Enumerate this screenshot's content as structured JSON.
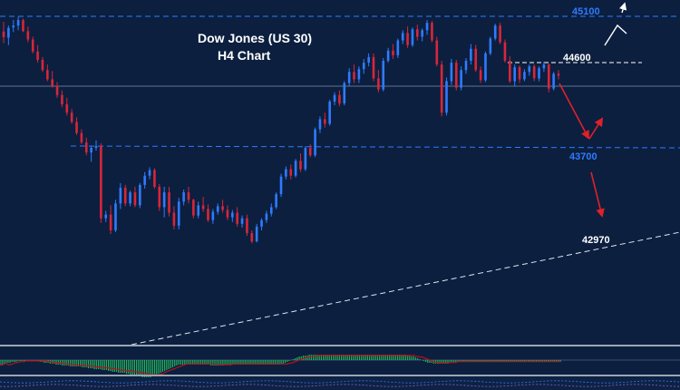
{
  "colors": {
    "background": "#0c1f3f",
    "bull_candle": "#2f7bff",
    "bear_candle": "#d8263a",
    "resistance_dash": "#2f7bff",
    "level_white": "#ffffff",
    "projection_red": "#e0202a",
    "projection_white": "#ffffff",
    "macd_hist": "#22b45a",
    "signal_line": "#b8121e",
    "panel_border": "#9aa6b6"
  },
  "chart_data": {
    "type": "candlestick",
    "title": "Dow Jones (US 30)",
    "subtitle": "H4 Chart",
    "timeframe": "H4",
    "ylim": [
      42640,
      45140
    ],
    "price_levels": [
      {
        "name": "resistance",
        "value": 45100,
        "label": "45100",
        "color": "#2f7bff",
        "style": "dashed"
      },
      {
        "name": "resistance-2",
        "value": 44600,
        "label": "44600",
        "color": "#ffffff",
        "style": "dashed"
      },
      {
        "name": "support",
        "value": 43700,
        "label": "43700",
        "color": "#2f7bff",
        "style": "dashed"
      },
      {
        "name": "target",
        "value": 42970,
        "label": "42970",
        "color": "#ffffff",
        "style": "none"
      }
    ],
    "trendline": "ascending support (dashed white)",
    "projection": "down to 43700, bounce, then down toward 42970; alternative breakout above 45100",
    "candles": [
      {
        "o": 44935,
        "h": 45040,
        "l": 44810,
        "c": 44875
      },
      {
        "o": 44870,
        "h": 45000,
        "l": 44790,
        "c": 44975
      },
      {
        "o": 44980,
        "h": 45060,
        "l": 44930,
        "c": 45000
      },
      {
        "o": 45000,
        "h": 45095,
        "l": 44950,
        "c": 45060
      },
      {
        "o": 45060,
        "h": 45075,
        "l": 44930,
        "c": 44940
      },
      {
        "o": 44940,
        "h": 44990,
        "l": 44820,
        "c": 44850
      },
      {
        "o": 44850,
        "h": 44880,
        "l": 44700,
        "c": 44720
      },
      {
        "o": 44720,
        "h": 44790,
        "l": 44600,
        "c": 44630
      },
      {
        "o": 44630,
        "h": 44660,
        "l": 44500,
        "c": 44520
      },
      {
        "o": 44520,
        "h": 44580,
        "l": 44400,
        "c": 44420
      },
      {
        "o": 44420,
        "h": 44510,
        "l": 44330,
        "c": 44350
      },
      {
        "o": 44350,
        "h": 44390,
        "l": 44220,
        "c": 44250
      },
      {
        "o": 44250,
        "h": 44300,
        "l": 44120,
        "c": 44150
      },
      {
        "o": 44150,
        "h": 44220,
        "l": 44030,
        "c": 44060
      },
      {
        "o": 44060,
        "h": 44100,
        "l": 43940,
        "c": 43960
      },
      {
        "o": 43960,
        "h": 44010,
        "l": 43820,
        "c": 43840
      },
      {
        "o": 43840,
        "h": 43880,
        "l": 43720,
        "c": 43740
      },
      {
        "o": 43740,
        "h": 43790,
        "l": 43600,
        "c": 43630
      },
      {
        "o": 43630,
        "h": 43700,
        "l": 43530,
        "c": 43680
      },
      {
        "o": 43680,
        "h": 43760,
        "l": 43650,
        "c": 43700
      },
      {
        "o": 43700,
        "h": 43730,
        "l": 42870,
        "c": 42920
      },
      {
        "o": 42920,
        "h": 43000,
        "l": 42880,
        "c": 42960
      },
      {
        "o": 42960,
        "h": 43060,
        "l": 42750,
        "c": 42790
      },
      {
        "o": 42790,
        "h": 43120,
        "l": 42770,
        "c": 43080
      },
      {
        "o": 43080,
        "h": 43300,
        "l": 43020,
        "c": 43250
      },
      {
        "o": 43250,
        "h": 43280,
        "l": 43050,
        "c": 43080
      },
      {
        "o": 43080,
        "h": 43220,
        "l": 43050,
        "c": 43200
      },
      {
        "o": 43200,
        "h": 43260,
        "l": 43040,
        "c": 43060
      },
      {
        "o": 43060,
        "h": 43300,
        "l": 43030,
        "c": 43280
      },
      {
        "o": 43280,
        "h": 43420,
        "l": 43240,
        "c": 43380
      },
      {
        "o": 43380,
        "h": 43470,
        "l": 43340,
        "c": 43440
      },
      {
        "o": 43440,
        "h": 43460,
        "l": 43240,
        "c": 43260
      },
      {
        "o": 43260,
        "h": 43290,
        "l": 43000,
        "c": 43040
      },
      {
        "o": 43040,
        "h": 43260,
        "l": 42930,
        "c": 43200
      },
      {
        "o": 43200,
        "h": 43260,
        "l": 42940,
        "c": 42980
      },
      {
        "o": 42980,
        "h": 43050,
        "l": 42800,
        "c": 42840
      },
      {
        "o": 42840,
        "h": 43140,
        "l": 42800,
        "c": 43100
      },
      {
        "o": 43100,
        "h": 43230,
        "l": 43060,
        "c": 43200
      },
      {
        "o": 43200,
        "h": 43260,
        "l": 43080,
        "c": 43120
      },
      {
        "o": 43120,
        "h": 43130,
        "l": 42920,
        "c": 42950
      },
      {
        "o": 42950,
        "h": 43100,
        "l": 42920,
        "c": 43060
      },
      {
        "o": 43060,
        "h": 43150,
        "l": 42990,
        "c": 43020
      },
      {
        "o": 43020,
        "h": 43070,
        "l": 42880,
        "c": 42900
      },
      {
        "o": 42900,
        "h": 43020,
        "l": 42860,
        "c": 42990
      },
      {
        "o": 42990,
        "h": 43080,
        "l": 42960,
        "c": 43050
      },
      {
        "o": 43050,
        "h": 43120,
        "l": 42980,
        "c": 43010
      },
      {
        "o": 43010,
        "h": 43060,
        "l": 42900,
        "c": 42930
      },
      {
        "o": 42930,
        "h": 43010,
        "l": 42880,
        "c": 42980
      },
      {
        "o": 42980,
        "h": 43040,
        "l": 42830,
        "c": 42860
      },
      {
        "o": 42860,
        "h": 42950,
        "l": 42820,
        "c": 42920
      },
      {
        "o": 42920,
        "h": 42960,
        "l": 42730,
        "c": 42760
      },
      {
        "o": 42760,
        "h": 42790,
        "l": 42650,
        "c": 42670
      },
      {
        "o": 42670,
        "h": 42860,
        "l": 42660,
        "c": 42830
      },
      {
        "o": 42830,
        "h": 42920,
        "l": 42790,
        "c": 42900
      },
      {
        "o": 42900,
        "h": 43000,
        "l": 42870,
        "c": 42970
      },
      {
        "o": 42970,
        "h": 43080,
        "l": 42940,
        "c": 43040
      },
      {
        "o": 43040,
        "h": 43200,
        "l": 43020,
        "c": 43180
      },
      {
        "o": 43180,
        "h": 43400,
        "l": 43150,
        "c": 43370
      },
      {
        "o": 43370,
        "h": 43480,
        "l": 43340,
        "c": 43450
      },
      {
        "o": 43450,
        "h": 43500,
        "l": 43340,
        "c": 43380
      },
      {
        "o": 43380,
        "h": 43560,
        "l": 43360,
        "c": 43540
      },
      {
        "o": 43540,
        "h": 43620,
        "l": 43420,
        "c": 43450
      },
      {
        "o": 43450,
        "h": 43700,
        "l": 43430,
        "c": 43680
      },
      {
        "o": 43680,
        "h": 43720,
        "l": 43580,
        "c": 43600
      },
      {
        "o": 43600,
        "h": 43900,
        "l": 43580,
        "c": 43880
      },
      {
        "o": 43880,
        "h": 44020,
        "l": 43840,
        "c": 43990
      },
      {
        "o": 43990,
        "h": 44060,
        "l": 43900,
        "c": 43940
      },
      {
        "o": 43940,
        "h": 44200,
        "l": 43920,
        "c": 44180
      },
      {
        "o": 44180,
        "h": 44280,
        "l": 44140,
        "c": 44250
      },
      {
        "o": 44250,
        "h": 44300,
        "l": 44130,
        "c": 44160
      },
      {
        "o": 44160,
        "h": 44400,
        "l": 44140,
        "c": 44380
      },
      {
        "o": 44380,
        "h": 44540,
        "l": 44350,
        "c": 44500
      },
      {
        "o": 44500,
        "h": 44580,
        "l": 44380,
        "c": 44420
      },
      {
        "o": 44420,
        "h": 44560,
        "l": 44380,
        "c": 44530
      },
      {
        "o": 44530,
        "h": 44640,
        "l": 44480,
        "c": 44600
      },
      {
        "o": 44600,
        "h": 44700,
        "l": 44560,
        "c": 44660
      },
      {
        "o": 44660,
        "h": 44700,
        "l": 44400,
        "c": 44430
      },
      {
        "o": 44430,
        "h": 44520,
        "l": 44280,
        "c": 44310
      },
      {
        "o": 44310,
        "h": 44650,
        "l": 44290,
        "c": 44620
      },
      {
        "o": 44620,
        "h": 44760,
        "l": 44600,
        "c": 44730
      },
      {
        "o": 44730,
        "h": 44800,
        "l": 44640,
        "c": 44680
      },
      {
        "o": 44680,
        "h": 44860,
        "l": 44650,
        "c": 44840
      },
      {
        "o": 44840,
        "h": 44950,
        "l": 44800,
        "c": 44920
      },
      {
        "o": 44920,
        "h": 44990,
        "l": 44760,
        "c": 44790
      },
      {
        "o": 44790,
        "h": 44980,
        "l": 44770,
        "c": 44960
      },
      {
        "o": 44960,
        "h": 45010,
        "l": 44840,
        "c": 44880
      },
      {
        "o": 44880,
        "h": 44970,
        "l": 44830,
        "c": 44950
      },
      {
        "o": 44950,
        "h": 45060,
        "l": 44900,
        "c": 45030
      },
      {
        "o": 45030,
        "h": 45050,
        "l": 44820,
        "c": 44840
      },
      {
        "o": 44840,
        "h": 44880,
        "l": 44560,
        "c": 44580
      },
      {
        "o": 44580,
        "h": 44620,
        "l": 44020,
        "c": 44060
      },
      {
        "o": 44060,
        "h": 44440,
        "l": 44030,
        "c": 44400
      },
      {
        "o": 44400,
        "h": 44640,
        "l": 44360,
        "c": 44600
      },
      {
        "o": 44600,
        "h": 44630,
        "l": 44300,
        "c": 44330
      },
      {
        "o": 44330,
        "h": 44560,
        "l": 44300,
        "c": 44520
      },
      {
        "o": 44520,
        "h": 44650,
        "l": 44480,
        "c": 44620
      },
      {
        "o": 44620,
        "h": 44800,
        "l": 44580,
        "c": 44750
      },
      {
        "o": 44750,
        "h": 44790,
        "l": 44500,
        "c": 44520
      },
      {
        "o": 44520,
        "h": 44560,
        "l": 44380,
        "c": 44410
      },
      {
        "o": 44410,
        "h": 44720,
        "l": 44390,
        "c": 44700
      },
      {
        "o": 44700,
        "h": 44880,
        "l": 44680,
        "c": 44860
      },
      {
        "o": 44860,
        "h": 45020,
        "l": 44840,
        "c": 45000
      },
      {
        "o": 45000,
        "h": 45030,
        "l": 44800,
        "c": 44820
      },
      {
        "o": 44820,
        "h": 44850,
        "l": 44600,
        "c": 44620
      },
      {
        "o": 44620,
        "h": 44670,
        "l": 44380,
        "c": 44400
      },
      {
        "o": 44400,
        "h": 44580,
        "l": 44340,
        "c": 44550
      },
      {
        "o": 44550,
        "h": 44570,
        "l": 44380,
        "c": 44420
      },
      {
        "o": 44420,
        "h": 44530,
        "l": 44400,
        "c": 44500
      },
      {
        "o": 44500,
        "h": 44580,
        "l": 44460,
        "c": 44560
      },
      {
        "o": 44560,
        "h": 44580,
        "l": 44400,
        "c": 44430
      },
      {
        "o": 44430,
        "h": 44560,
        "l": 44400,
        "c": 44540
      },
      {
        "o": 44540,
        "h": 44610,
        "l": 44500,
        "c": 44580
      },
      {
        "o": 44580,
        "h": 44590,
        "l": 44280,
        "c": 44320
      },
      {
        "o": 44320,
        "h": 44500,
        "l": 44300,
        "c": 44480
      },
      {
        "o": 44480,
        "h": 44520,
        "l": 44420,
        "c": 44460
      }
    ]
  },
  "indicator": {
    "histogram": [
      -6,
      -6,
      -5,
      -4,
      -3,
      -3,
      -2,
      -2,
      -2,
      -1,
      -1,
      -1,
      -1,
      -1,
      -1,
      -1,
      -1,
      -1,
      -1,
      -1,
      -2,
      -2,
      -3,
      -3,
      -3,
      -4,
      -4,
      -4,
      -5,
      -5,
      -5,
      -6,
      -6,
      -6,
      -6,
      -7,
      -7,
      -7,
      -7,
      -7,
      -7,
      -8,
      -8,
      -8,
      -9,
      -9,
      -9,
      -10,
      -10,
      -10,
      -10,
      -11,
      -11,
      -11,
      -12,
      -12,
      -13,
      -13,
      -13,
      -14,
      -14,
      -14,
      -14,
      -15,
      -15,
      -16,
      -16,
      -17,
      -17,
      -18,
      -18,
      -19,
      -19,
      -19,
      -19,
      -19,
      -18,
      -18,
      -16,
      -15,
      -14,
      -13,
      -12,
      -11,
      -10,
      -9,
      -8,
      -7,
      -6,
      -5,
      -5,
      -5,
      -5,
      -5,
      -5,
      -5,
      -5,
      -5,
      -5,
      -5,
      -5,
      -5,
      -5,
      -5,
      -5,
      -6,
      -6,
      -6,
      -6,
      -6,
      -6,
      -6,
      -5,
      -5,
      -5,
      -5,
      -5,
      -5,
      -5,
      -5,
      -5,
      -5,
      -5,
      -5,
      -5,
      -5,
      -5,
      -5,
      -5,
      -5,
      -5,
      -5,
      -5,
      -5,
      -5,
      -5,
      -5,
      -5,
      -5,
      -5,
      -4,
      -4,
      -3,
      -2,
      -1,
      0,
      1,
      2,
      3,
      4,
      4,
      5,
      5,
      5,
      6,
      6,
      6,
      6,
      6,
      6,
      6,
      6,
      6,
      6,
      6,
      6,
      6,
      6,
      6,
      6,
      6,
      6,
      6,
      6,
      6,
      6,
      6,
      6,
      6,
      6,
      6,
      6,
      6,
      6,
      6,
      6,
      6,
      6,
      6,
      6,
      6,
      6,
      6,
      6,
      6,
      6,
      6,
      6,
      6,
      6,
      6,
      6,
      6,
      5,
      5,
      4,
      4,
      3,
      2,
      1,
      0,
      -1,
      -2,
      -3,
      -3,
      -3,
      -4,
      -4,
      -4,
      -4,
      -3,
      -3,
      -3,
      -3,
      -2,
      -2,
      -2,
      -2,
      -2,
      -2,
      -2,
      -2,
      -2,
      -2,
      -2,
      -2,
      -2,
      -2,
      -2,
      -2,
      -2,
      -2,
      -2,
      -2,
      -2,
      -2,
      -2,
      -2,
      -2,
      -2,
      -2,
      -2,
      -2,
      -2,
      -2,
      -2,
      -2,
      -2,
      -2,
      -2,
      -2,
      -2,
      -2,
      -2,
      -2,
      -2,
      -2,
      -2,
      -2,
      -2,
      -2,
      -2,
      -2,
      -2,
      -2,
      -2,
      -2,
      -2,
      -2,
      -2
    ]
  }
}
